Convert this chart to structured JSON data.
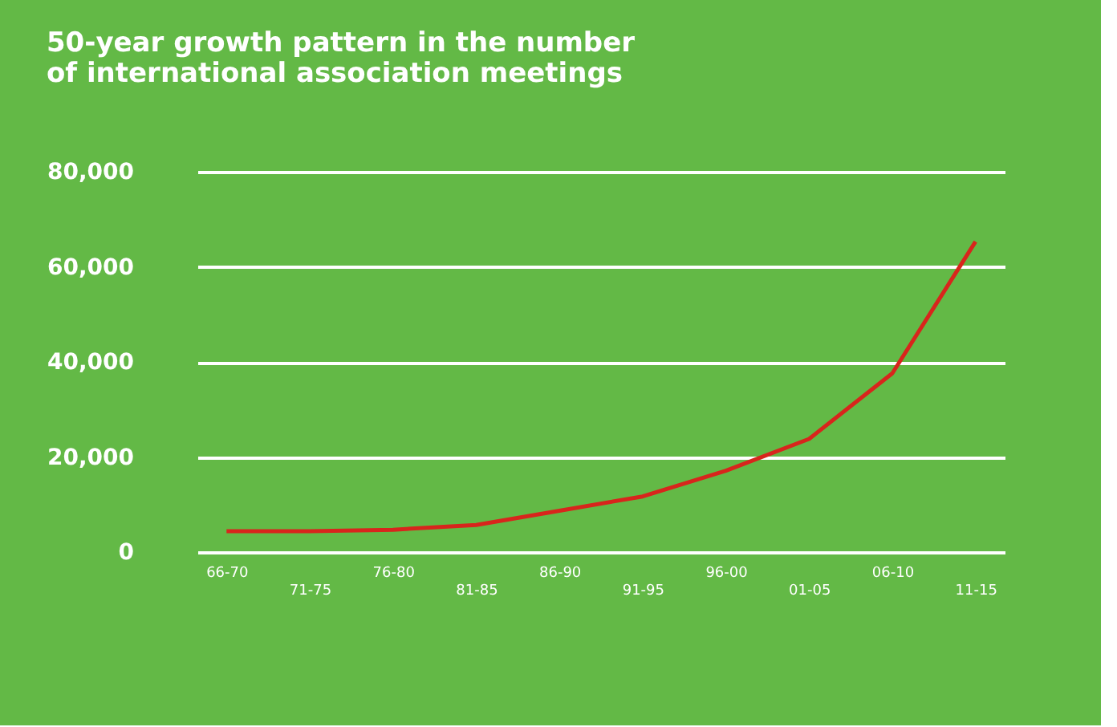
{
  "chart_data": {
    "type": "line",
    "title": [
      "50-year growth pattern in the number",
      "of international association meetings"
    ],
    "categories": [
      "66-70",
      "71-75",
      "76-80",
      "81-85",
      "86-90",
      "91-95",
      "96-00",
      "01-05",
      "06-10",
      "11-15"
    ],
    "series": [
      {
        "color": "#d8251c",
        "values": [
          4400,
          4400,
          4700,
          5700,
          8700,
          11700,
          17100,
          23800,
          37600,
          65300
        ]
      }
    ],
    "ylim": [
      0,
      80000
    ],
    "yticks": [
      {
        "value": 0,
        "label": "0"
      },
      {
        "value": 20000,
        "label": "20,000"
      },
      {
        "value": 40000,
        "label": "40,000"
      },
      {
        "value": 60000,
        "label": "60,000"
      },
      {
        "value": 80000,
        "label": "80,000"
      }
    ],
    "grid": "y",
    "legend": false,
    "marker": "none",
    "line_style": "solid"
  }
}
